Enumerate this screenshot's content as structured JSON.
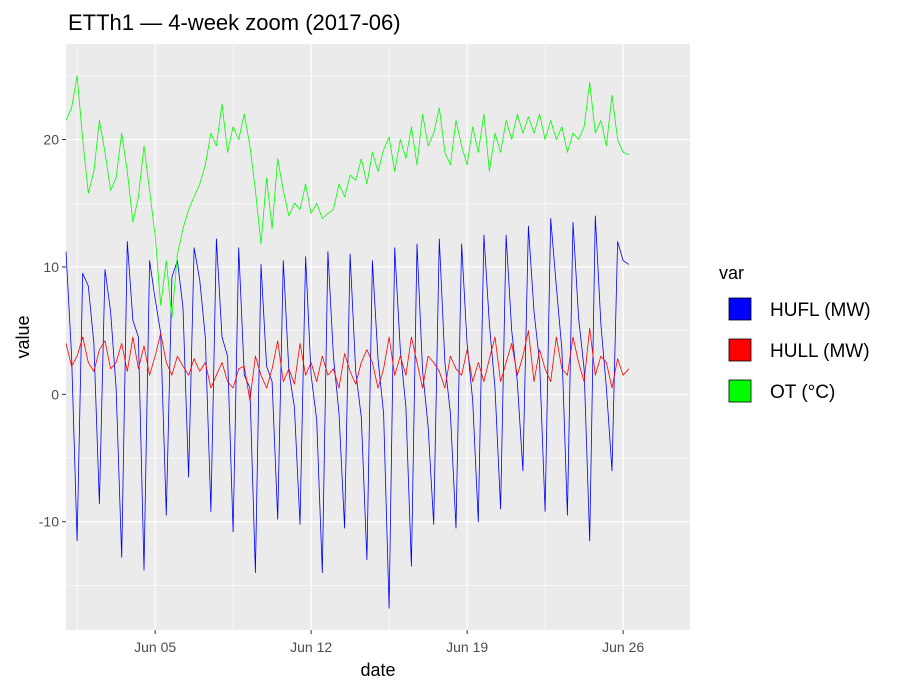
{
  "chart_data": {
    "type": "line",
    "title": "ETTh1 — 4-week zoom (2017-06)",
    "xlabel": "date",
    "ylabel": "value",
    "x_ticks": [
      {
        "date": "2017-06-05",
        "label": "Jun 05"
      },
      {
        "date": "2017-06-12",
        "label": "Jun 12"
      },
      {
        "date": "2017-06-19",
        "label": "Jun 19"
      },
      {
        "date": "2017-06-26",
        "label": "Jun 26"
      }
    ],
    "xlim": [
      "2017-06-01",
      "2017-06-29"
    ],
    "ylim": [
      -18.5,
      27.5
    ],
    "y_ticks": [
      -10,
      0,
      10,
      20
    ],
    "y_tick_labels": [
      "-10",
      "0",
      "10",
      "20"
    ],
    "grid": true,
    "legend": {
      "title": "var",
      "position": "right"
    },
    "sample_interval": "6h",
    "series": [
      {
        "name": "HUFL (MW)",
        "color": "#0000FF",
        "start": "2017-06-01T00:00",
        "values": [
          11.2,
          3.0,
          -11.5,
          9.5,
          8.5,
          4.0,
          -8.6,
          9.8,
          6.5,
          0.5,
          -12.8,
          12.0,
          5.8,
          4.5,
          -13.8,
          10.5,
          7.5,
          4.8,
          -9.5,
          9.2,
          10.5,
          6.8,
          -6.5,
          11.5,
          9.0,
          4.5,
          -9.2,
          12.2,
          4.5,
          3.0,
          -10.8,
          11.5,
          1.5,
          0.5,
          -14.0,
          10.2,
          2.2,
          1.0,
          -9.8,
          10.5,
          1.8,
          -1.0,
          -10.2,
          10.8,
          1.5,
          -2.0,
          -14.0,
          11.2,
          3.0,
          -1.5,
          -10.5,
          11.0,
          1.8,
          -1.8,
          -13.0,
          10.5,
          2.8,
          -1.5,
          -16.8,
          11.5,
          3.5,
          -1.0,
          -13.5,
          11.8,
          1.8,
          -2.5,
          -10.2,
          12.2,
          2.5,
          -1.5,
          -10.5,
          11.8,
          4.0,
          -0.5,
          -10.0,
          12.5,
          5.5,
          0.5,
          -9.0,
          12.5,
          5.0,
          1.0,
          -6.0,
          13.2,
          6.5,
          2.5,
          -9.2,
          13.8,
          8.5,
          3.5,
          -9.5,
          13.5,
          6.0,
          2.0,
          -11.5,
          14.0,
          5.5,
          0.5,
          -6.0,
          12.0,
          10.5,
          10.2
        ]
      },
      {
        "name": "HULL (MW)",
        "color": "#FF0000",
        "start": "2017-06-01T00:00",
        "values": [
          4.0,
          2.2,
          3.0,
          4.5,
          2.5,
          1.8,
          3.5,
          4.2,
          2.0,
          2.5,
          4.0,
          1.8,
          4.5,
          2.0,
          3.8,
          1.5,
          3.0,
          4.8,
          2.5,
          1.5,
          3.0,
          2.2,
          1.5,
          2.8,
          1.8,
          2.5,
          0.5,
          1.5,
          2.5,
          1.0,
          0.5,
          2.0,
          2.2,
          -0.5,
          3.0,
          1.5,
          0.5,
          2.0,
          4.2,
          1.0,
          2.0,
          0.8,
          4.0,
          1.5,
          2.5,
          1.0,
          3.0,
          1.5,
          2.0,
          0.5,
          3.2,
          1.8,
          0.8,
          2.5,
          3.5,
          2.5,
          0.5,
          2.0,
          4.5,
          1.5,
          3.0,
          1.5,
          4.5,
          2.5,
          0.5,
          3.0,
          2.5,
          1.8,
          0.5,
          3.0,
          2.0,
          1.5,
          3.5,
          1.0,
          2.5,
          1.0,
          2.8,
          4.5,
          1.0,
          2.5,
          4.0,
          1.5,
          3.0,
          5.0,
          1.0,
          3.5,
          2.0,
          1.0,
          4.5,
          2.0,
          1.5,
          4.5,
          2.5,
          1.0,
          5.2,
          1.5,
          3.0,
          2.5,
          0.5,
          2.8,
          1.5,
          2.0
        ]
      },
      {
        "name": "OT (°C)",
        "color": "#00FF00",
        "start": "2017-06-01T00:00",
        "values": [
          21.5,
          22.5,
          25.0,
          20.0,
          15.8,
          17.5,
          21.5,
          19.0,
          16.0,
          17.0,
          20.5,
          17.5,
          13.5,
          15.5,
          19.5,
          16.0,
          12.5,
          7.0,
          10.5,
          6.0,
          11.0,
          13.0,
          14.5,
          15.5,
          16.5,
          18.0,
          20.5,
          19.5,
          22.8,
          19.0,
          21.0,
          20.0,
          22.0,
          19.5,
          16.0,
          11.8,
          17.0,
          13.0,
          18.5,
          16.0,
          14.0,
          15.0,
          14.5,
          16.5,
          14.2,
          15.0,
          13.8,
          14.2,
          14.5,
          16.5,
          15.5,
          17.2,
          16.8,
          18.5,
          16.5,
          19.0,
          17.5,
          19.2,
          20.2,
          17.5,
          20.0,
          18.5,
          21.0,
          18.0,
          22.0,
          19.5,
          20.5,
          22.5,
          19.0,
          18.0,
          21.5,
          19.5,
          18.0,
          21.0,
          19.0,
          22.0,
          17.5,
          20.5,
          19.0,
          21.5,
          20.0,
          22.0,
          20.5,
          21.8,
          20.5,
          22.0,
          20.0,
          21.5,
          20.0,
          21.0,
          19.0,
          20.5,
          20.0,
          21.0,
          24.5,
          20.5,
          21.5,
          19.5,
          23.5,
          20.0,
          19.0,
          18.8
        ]
      }
    ]
  }
}
